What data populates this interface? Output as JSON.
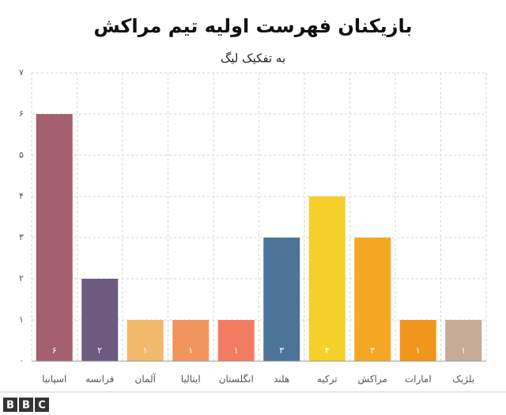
{
  "chart_data": {
    "type": "bar",
    "title": "بازیکنان فهرست اولیه تیم مراکش",
    "subtitle": "به تفکیک لیگ",
    "categories": [
      "اسپانیا",
      "فرانسه",
      "آلمان",
      "ایتالیا",
      "انگلستان",
      "هلند",
      "ترکیه",
      "مراکش",
      "امارات",
      "بلژیک"
    ],
    "values": [
      6,
      2,
      1,
      1,
      1,
      3,
      4,
      3,
      1,
      1
    ],
    "value_labels": [
      "۶",
      "۲",
      "۱",
      "۱",
      "۱",
      "۳",
      "۴",
      "۳",
      "۱",
      "۱"
    ],
    "colors": [
      "#a5606f",
      "#6c5a7f",
      "#f3b96b",
      "#f2955c",
      "#f37c60",
      "#4c7497",
      "#f5d02a",
      "#f5a623",
      "#f0961d",
      "#c6ab96"
    ],
    "ylim": [
      0,
      7
    ],
    "yticks": [
      {
        "value": 0,
        "label": "۰"
      },
      {
        "value": 1,
        "label": "۱"
      },
      {
        "value": 2,
        "label": "۲"
      },
      {
        "value": 3,
        "label": "۳"
      },
      {
        "value": 4,
        "label": "۴"
      },
      {
        "value": 5,
        "label": "۵"
      },
      {
        "value": 6,
        "label": "۶"
      },
      {
        "value": 7,
        "label": "۷"
      }
    ],
    "grid": true
  },
  "logo": [
    "B",
    "B",
    "C"
  ]
}
